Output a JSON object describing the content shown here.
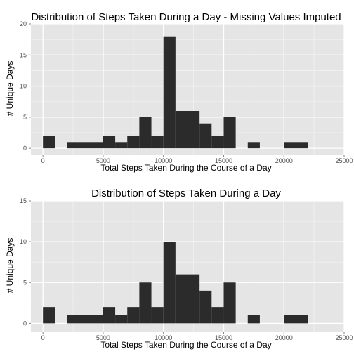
{
  "chart_data": [
    {
      "type": "bar",
      "title": "Distribution of Steps Taken During a Day - Missing Values Imputed",
      "xlabel": "Total Steps Taken During the Course of a Day",
      "ylabel": "# Unique Days",
      "bin_width": 1000,
      "xlim": [
        -1000,
        25000
      ],
      "ylim": [
        -1,
        20
      ],
      "x_ticks": [
        0,
        5000,
        10000,
        15000,
        20000,
        25000
      ],
      "y_ticks": [
        0,
        5,
        10,
        15,
        20
      ],
      "grid": true,
      "bins": [
        {
          "x0": 0,
          "x1": 1000,
          "count": 2
        },
        {
          "x0": 1000,
          "x1": 2000,
          "count": 0
        },
        {
          "x0": 2000,
          "x1": 3000,
          "count": 1
        },
        {
          "x0": 3000,
          "x1": 4000,
          "count": 1
        },
        {
          "x0": 4000,
          "x1": 5000,
          "count": 1
        },
        {
          "x0": 5000,
          "x1": 6000,
          "count": 2
        },
        {
          "x0": 6000,
          "x1": 7000,
          "count": 1
        },
        {
          "x0": 7000,
          "x1": 8000,
          "count": 2
        },
        {
          "x0": 8000,
          "x1": 9000,
          "count": 5
        },
        {
          "x0": 9000,
          "x1": 10000,
          "count": 2
        },
        {
          "x0": 10000,
          "x1": 11000,
          "count": 18
        },
        {
          "x0": 11000,
          "x1": 12000,
          "count": 6
        },
        {
          "x0": 12000,
          "x1": 13000,
          "count": 6
        },
        {
          "x0": 13000,
          "x1": 14000,
          "count": 4
        },
        {
          "x0": 14000,
          "x1": 15000,
          "count": 2
        },
        {
          "x0": 15000,
          "x1": 16000,
          "count": 5
        },
        {
          "x0": 16000,
          "x1": 17000,
          "count": 0
        },
        {
          "x0": 17000,
          "x1": 18000,
          "count": 1
        },
        {
          "x0": 18000,
          "x1": 19000,
          "count": 0
        },
        {
          "x0": 19000,
          "x1": 20000,
          "count": 0
        },
        {
          "x0": 20000,
          "x1": 21000,
          "count": 1
        },
        {
          "x0": 21000,
          "x1": 22000,
          "count": 1
        }
      ]
    },
    {
      "type": "bar",
      "title": "Distribution of Steps Taken During a Day",
      "xlabel": "Total Steps Taken During the Course of a Day",
      "ylabel": "# Unique Days",
      "bin_width": 1000,
      "xlim": [
        -1000,
        25000
      ],
      "ylim": [
        -1,
        15
      ],
      "x_ticks": [
        0,
        5000,
        10000,
        15000,
        20000,
        25000
      ],
      "y_ticks": [
        0,
        5,
        10,
        15
      ],
      "grid": true,
      "bins": [
        {
          "x0": 0,
          "x1": 1000,
          "count": 2
        },
        {
          "x0": 1000,
          "x1": 2000,
          "count": 0
        },
        {
          "x0": 2000,
          "x1": 3000,
          "count": 1
        },
        {
          "x0": 3000,
          "x1": 4000,
          "count": 1
        },
        {
          "x0": 4000,
          "x1": 5000,
          "count": 1
        },
        {
          "x0": 5000,
          "x1": 6000,
          "count": 2
        },
        {
          "x0": 6000,
          "x1": 7000,
          "count": 1
        },
        {
          "x0": 7000,
          "x1": 8000,
          "count": 2
        },
        {
          "x0": 8000,
          "x1": 9000,
          "count": 5
        },
        {
          "x0": 9000,
          "x1": 10000,
          "count": 2
        },
        {
          "x0": 10000,
          "x1": 11000,
          "count": 10
        },
        {
          "x0": 11000,
          "x1": 12000,
          "count": 6
        },
        {
          "x0": 12000,
          "x1": 13000,
          "count": 6
        },
        {
          "x0": 13000,
          "x1": 14000,
          "count": 4
        },
        {
          "x0": 14000,
          "x1": 15000,
          "count": 2
        },
        {
          "x0": 15000,
          "x1": 16000,
          "count": 5
        },
        {
          "x0": 16000,
          "x1": 17000,
          "count": 0
        },
        {
          "x0": 17000,
          "x1": 18000,
          "count": 1
        },
        {
          "x0": 18000,
          "x1": 19000,
          "count": 0
        },
        {
          "x0": 19000,
          "x1": 20000,
          "count": 0
        },
        {
          "x0": 20000,
          "x1": 21000,
          "count": 1
        },
        {
          "x0": 21000,
          "x1": 22000,
          "count": 1
        }
      ]
    }
  ],
  "colors": {
    "panel_background": "#e5e5e5",
    "grid_major": "#ffffff",
    "grid_minor": "#f2f2f2",
    "bar_fill": "#2b2b2b",
    "tick_text": "#4d4d4d",
    "tick_mark": "#7f7f7f"
  }
}
